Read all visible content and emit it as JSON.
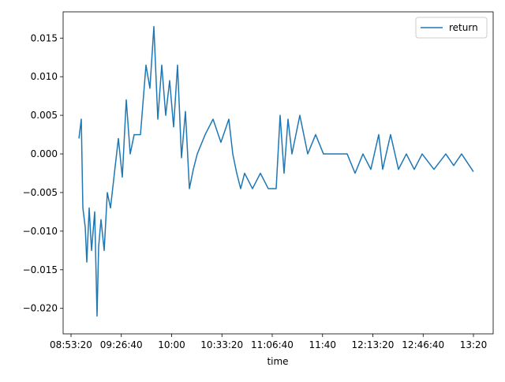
{
  "chart_data": {
    "type": "line",
    "xlabel": "time",
    "x": [
      "08:58:34",
      "09:00:08",
      "09:01:11",
      "09:02:45",
      "09:03:47",
      "09:05:22",
      "09:06:56",
      "09:09:01",
      "09:10:35",
      "09:11:38",
      "09:13:12",
      "09:15:18",
      "09:17:23",
      "09:19:29",
      "09:22:05",
      "09:24:42",
      "09:27:19",
      "09:29:56",
      "09:32:33",
      "09:35:10",
      "09:39:21",
      "09:43:00",
      "09:45:37",
      "09:48:14",
      "09:50:51",
      "09:53:28",
      "09:56:04",
      "09:58:41",
      "10:01:18",
      "10:03:55",
      "10:06:32",
      "10:09:09",
      "10:11:46",
      "10:14:22",
      "10:16:59",
      "10:22:13",
      "10:27:27",
      "10:32:40",
      "10:37:54",
      "10:40:31",
      "10:43:08",
      "10:45:45",
      "10:48:21",
      "10:53:35",
      "10:58:49",
      "11:04:03",
      "11:09:16",
      "11:11:53",
      "11:14:30",
      "11:17:07",
      "11:19:44",
      "11:24:57",
      "11:30:11",
      "11:35:25",
      "11:40:38",
      "11:48:29",
      "11:56:20",
      "12:01:33",
      "12:06:47",
      "12:12:01",
      "12:17:14",
      "12:19:51",
      "12:25:05",
      "12:30:19",
      "12:35:32",
      "12:40:46",
      "12:46:00",
      "12:53:50",
      "13:01:41",
      "13:06:55",
      "13:12:08",
      "13:20:00"
    ],
    "series": [
      {
        "name": "return",
        "color": "#1f77b4",
        "values": [
          0.002,
          0.0045,
          -0.007,
          -0.0095,
          -0.014,
          -0.007,
          -0.0125,
          -0.0075,
          -0.021,
          -0.012,
          -0.0085,
          -0.0125,
          -0.005,
          -0.007,
          -0.0025,
          0.002,
          -0.003,
          0.007,
          0.0,
          0.0025,
          0.0025,
          0.0115,
          0.0085,
          0.0165,
          0.0045,
          0.0115,
          0.005,
          0.0095,
          0.0035,
          0.0115,
          -0.0005,
          0.0055,
          -0.0045,
          -0.002,
          0.0,
          0.0025,
          0.0045,
          0.0015,
          0.0045,
          0.0,
          -0.0025,
          -0.0045,
          -0.0025,
          -0.0045,
          -0.0025,
          -0.0045,
          -0.0045,
          0.005,
          -0.0025,
          0.0045,
          0.0,
          0.005,
          0.0,
          0.0025,
          0.0,
          0.0,
          0.0,
          -0.0025,
          0.0,
          -0.002,
          0.0025,
          -0.002,
          0.0025,
          -0.002,
          0.0,
          -0.002,
          0.0,
          -0.002,
          0.0,
          -0.0015,
          0.0,
          -0.0023
        ]
      }
    ],
    "xlim": [
      "08:48:06",
      "13:33:04"
    ],
    "xticks": [
      "08:53:20",
      "09:26:40",
      "10:00",
      "10:33:20",
      "11:06:40",
      "11:40",
      "12:13:20",
      "12:46:40",
      "13:20"
    ],
    "ylim": [
      -0.0233,
      0.0184
    ],
    "yticks": [
      {
        "value": -0.02,
        "label": "−0.020"
      },
      {
        "value": -0.015,
        "label": "−0.015"
      },
      {
        "value": -0.01,
        "label": "−0.010"
      },
      {
        "value": -0.005,
        "label": "−0.005"
      },
      {
        "value": 0,
        "label": "0.000"
      },
      {
        "value": 0.005,
        "label": "0.005"
      },
      {
        "value": 0.01,
        "label": "0.010"
      },
      {
        "value": 0.015,
        "label": "0.015"
      }
    ],
    "legend": "upper right"
  }
}
